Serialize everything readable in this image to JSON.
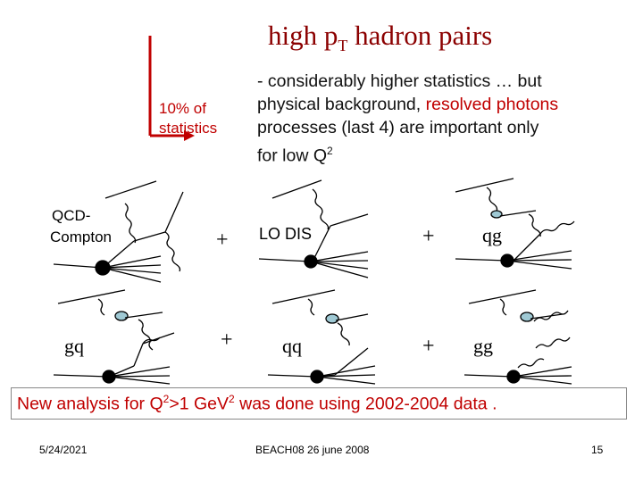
{
  "title": {
    "main": "high p",
    "sub": "T",
    "rest": " hadron pairs"
  },
  "stat_label": {
    "line1": "10% of",
    "line2": "statistics"
  },
  "bullet": {
    "line1": "- considerably higher statistics … but",
    "line2a": "physical background, ",
    "line2b": "resolved photons",
    "line3": "processes (last 4) are important only",
    "line4a": "for low Q",
    "line4b": "2"
  },
  "diagrams": {
    "qcd_compton_a": "QCD-",
    "qcd_compton_b": "Compton",
    "lo_dis": "LO DIS",
    "qg": "qg",
    "gq": "gq",
    "qq": "qq",
    "gg": "gg",
    "plus": "+"
  },
  "conclusion": {
    "a": "New analysis for Q",
    "b": "2",
    "c": ">1 GeV",
    "d": "2",
    "e": " was done using 2002-2004 data ."
  },
  "footer": {
    "date": "5/24/2021",
    "center": "BEACH08 26 june 2008",
    "page": "15"
  },
  "colors": {
    "accent_red": "#c00000",
    "title_red": "#8b0000",
    "blob_fill": "#9fc9d4"
  }
}
